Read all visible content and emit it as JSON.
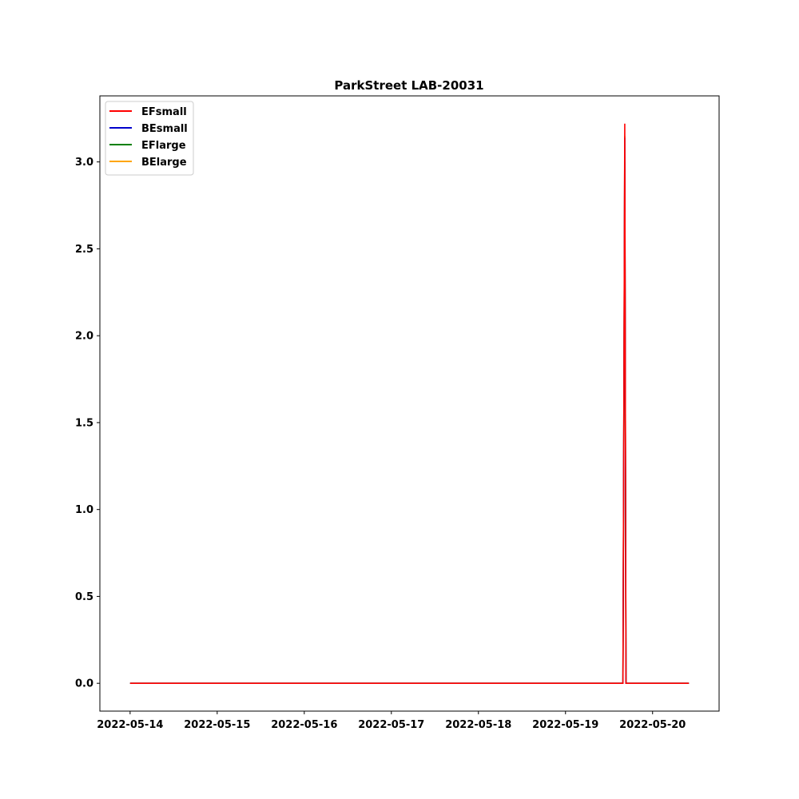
{
  "chart_data": {
    "type": "line",
    "title": "ParkStreet LAB-20031",
    "xlabel": "",
    "ylabel": "",
    "x_ticks": [
      "2022-05-14",
      "2022-05-15",
      "2022-05-16",
      "2022-05-17",
      "2022-05-18",
      "2022-05-19",
      "2022-05-20"
    ],
    "y_ticks": [
      "0.0",
      "0.5",
      "1.0",
      "1.5",
      "2.0",
      "2.5",
      "3.0"
    ],
    "xlim": [
      "2022-05-13T15:40",
      "2022-05-20T18:20"
    ],
    "ylim": [
      -0.16,
      3.38
    ],
    "grid": false,
    "legend_position": "top-left",
    "series": [
      {
        "name": "EFsmall",
        "color": "#ff0000",
        "points": [
          [
            "2022-05-14T00:00",
            0.0
          ],
          [
            "2022-05-19T15:50",
            0.0
          ],
          [
            "2022-05-19T16:20",
            3.22
          ],
          [
            "2022-05-19T16:40",
            0.0
          ],
          [
            "2022-05-20T10:00",
            0.0
          ]
        ]
      },
      {
        "name": "BEsmall",
        "color": "#0000cc",
        "points": [
          [
            "2022-05-14T00:00",
            0.0
          ],
          [
            "2022-05-19T15:50",
            0.0
          ],
          [
            "2022-05-19T16:20",
            3.14
          ],
          [
            "2022-05-19T16:40",
            0.0
          ],
          [
            "2022-05-20T10:00",
            0.0
          ]
        ]
      },
      {
        "name": "EFlarge",
        "color": "#008000",
        "points": [
          [
            "2022-05-14T00:00",
            0.0
          ],
          [
            "2022-05-19T15:50",
            0.0
          ],
          [
            "2022-05-19T16:20",
            3.0
          ],
          [
            "2022-05-19T16:40",
            0.0
          ],
          [
            "2022-05-20T10:00",
            0.0
          ]
        ]
      },
      {
        "name": "BElarge",
        "color": "#ffa500",
        "points": [
          [
            "2022-05-14T00:00",
            0.0
          ],
          [
            "2022-05-19T15:50",
            0.0
          ],
          [
            "2022-05-19T16:20",
            3.15
          ],
          [
            "2022-05-19T16:40",
            0.0
          ],
          [
            "2022-05-20T10:00",
            0.0
          ]
        ]
      }
    ]
  }
}
